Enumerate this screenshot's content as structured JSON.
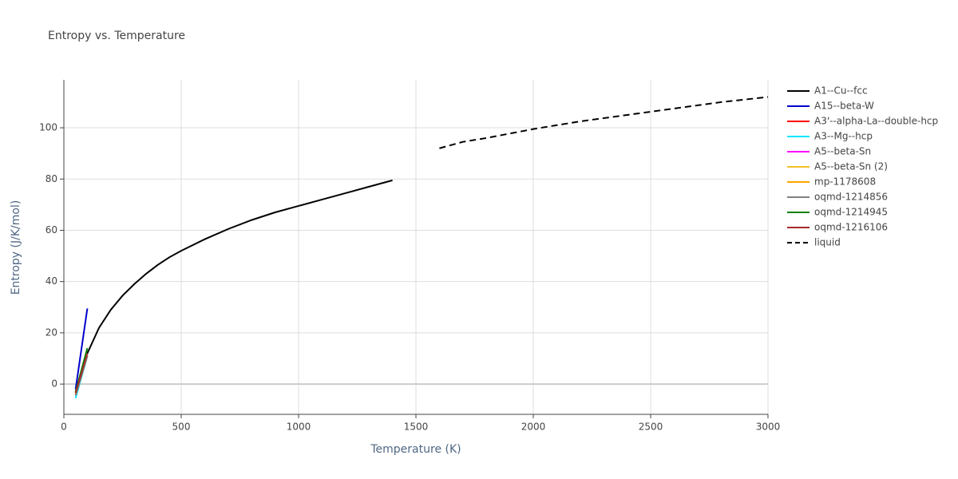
{
  "chart_data": {
    "type": "line",
    "title": "Entropy vs. Temperature",
    "x_label": "Temperature (K)",
    "y_label": "Entropy (J/K/mol)",
    "xlim": [
      0,
      3000
    ],
    "xticks": [
      0,
      500,
      1000,
      1500,
      2000,
      2500,
      3000
    ],
    "ylim": [
      -11.8,
      118.7
    ],
    "yticks": [
      0,
      20,
      40,
      60,
      80,
      100
    ],
    "grid": true,
    "legend": "right",
    "series": [
      {
        "name": "A1--Cu--fcc",
        "color": "#000000",
        "x": [
          50,
          100,
          150,
          200,
          250,
          300,
          350,
          400,
          450,
          500,
          600,
          700,
          800,
          900,
          1000,
          1100,
          1200,
          1300,
          1400
        ],
        "values": [
          -3,
          12,
          22,
          29,
          34.5,
          39,
          43,
          46.5,
          49.5,
          52,
          56.5,
          60.5,
          64,
          67,
          69.5,
          72,
          74.5,
          77,
          79.5
        ]
      },
      {
        "name": "A15--beta-W",
        "color": "#0000cc",
        "x": [
          50,
          100
        ],
        "values": [
          -2,
          29.5
        ]
      },
      {
        "name": "A3'--alpha-La--double-hcp",
        "color": "#ff0000",
        "x": [
          50,
          100
        ],
        "values": [
          -3,
          12
        ]
      },
      {
        "name": "A3--Mg--hcp",
        "color": "#00e5ff",
        "x": [
          50,
          100
        ],
        "values": [
          -5.5,
          11
        ]
      },
      {
        "name": "A5--beta-Sn",
        "color": "#ff00ff",
        "x": [
          50,
          100
        ],
        "values": [
          -4,
          11.5
        ]
      },
      {
        "name": "A5--beta-Sn (2)",
        "color": "#f4bf2a",
        "x": [
          50,
          100
        ],
        "values": [
          -4,
          11.5
        ]
      },
      {
        "name": "mp-1178608",
        "color": "#ffa500",
        "x": [
          50,
          100
        ],
        "values": [
          -4,
          11
        ]
      },
      {
        "name": "oqmd-1214856",
        "color": "#808080",
        "x": [
          50,
          100
        ],
        "values": [
          -4.5,
          11
        ]
      },
      {
        "name": "oqmd-1214945",
        "color": "#008000",
        "x": [
          50,
          100
        ],
        "values": [
          -3,
          14
        ]
      },
      {
        "name": "oqmd-1216106",
        "color": "#a52a2a",
        "x": [
          50,
          100
        ],
        "values": [
          -3.5,
          12
        ]
      },
      {
        "name": "liquid",
        "color": "#000000",
        "dash": "dash",
        "x": [
          1600,
          1700,
          1800,
          2000,
          2200,
          2400,
          2600,
          2800,
          3000
        ],
        "values": [
          92,
          94.5,
          96,
          99.5,
          102.5,
          105,
          107.5,
          110,
          112
        ]
      }
    ]
  }
}
